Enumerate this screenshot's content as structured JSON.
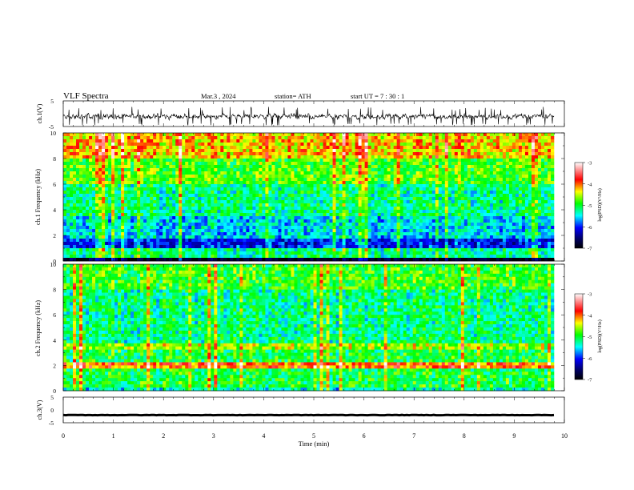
{
  "header": {
    "title": "VLF  Spectra",
    "date": "Mar.3  , 2024",
    "station": "station= ATH",
    "start_ut": "start  UT  =    7  : 30 : 1"
  },
  "chart_data": [
    {
      "id": "ch1-waveform",
      "type": "line",
      "ylabel": "ch.1(V)",
      "ylim": [
        -5,
        5
      ],
      "yticks": [
        "5",
        "-5"
      ],
      "xlim": [
        0,
        10
      ],
      "xlabel": "",
      "series": [
        {
          "trace": "noisy waveform, mostly within -3 to 1 V"
        }
      ]
    },
    {
      "id": "ch1-spectrogram",
      "type": "heatmap",
      "ylabel": "ch.1 Frequency  (kHz)",
      "ylim": [
        0,
        10
      ],
      "yticks": [
        "0",
        "2",
        "4",
        "6",
        "8",
        "10"
      ],
      "xlim": [
        0,
        10
      ],
      "colorbar": {
        "label": "log(PSD)(V²/Hz)",
        "ticks": [
          "-3",
          "-4",
          "-5",
          "-6",
          "-7"
        ],
        "range": [
          -7,
          -3
        ]
      }
    },
    {
      "id": "ch2-spectrogram",
      "type": "heatmap",
      "ylabel": "ch.2 Frequency  (kHz)",
      "ylim": [
        0,
        10
      ],
      "yticks": [
        "0",
        "2",
        "4",
        "6",
        "8",
        "10"
      ],
      "xlim": [
        0,
        10
      ],
      "colorbar": {
        "label": "log(PSD)(V²/Hz)",
        "ticks": [
          "-3",
          "-4",
          "-5",
          "-6",
          "-7"
        ],
        "range": [
          -7,
          -3
        ]
      }
    },
    {
      "id": "ch3-waveform",
      "type": "line",
      "ylabel": "ch.3(V)",
      "ylim": [
        -5,
        5
      ],
      "yticks": [
        "5",
        "0",
        "-5"
      ],
      "xlim": [
        0,
        10
      ],
      "xlabel": "Time  (min)",
      "xticks": [
        "0",
        "1",
        "2",
        "3",
        "4",
        "5",
        "6",
        "7",
        "8",
        "9",
        "10"
      ],
      "series": [
        {
          "trace": "nearly flat line at about -2 V"
        }
      ]
    }
  ]
}
